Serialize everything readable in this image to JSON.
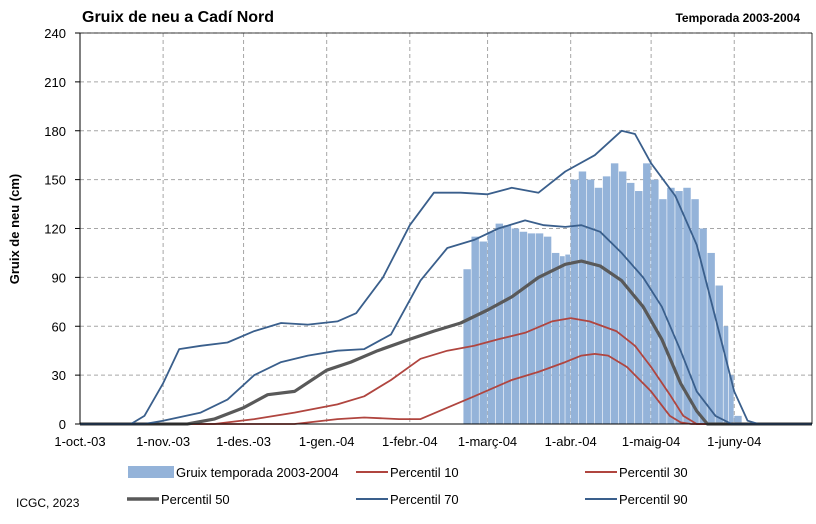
{
  "colors": {
    "bars": "#94b3d9",
    "p10": "#b0453f",
    "p30": "#b0453f",
    "p50": "#595959",
    "p70": "#3a5f8c",
    "p90": "#3a5f8c",
    "grid": "#a6a6a6"
  },
  "chart_data": {
    "type": "bar",
    "title": "Gruix de neu a Cadí Nord",
    "season_label": "Temporada 2003-2004",
    "ylabel": "Gruix de neu (cm)",
    "xlabel": "",
    "ylim": [
      0,
      240
    ],
    "yticks": [
      0,
      30,
      60,
      90,
      120,
      150,
      180,
      210,
      240
    ],
    "xlim": [
      "2003-10-01",
      "2004-06-30"
    ],
    "xticks": [
      {
        "date": "2003-10-01",
        "label": "1-oct.-03"
      },
      {
        "date": "2003-11-01",
        "label": "1-nov.-03"
      },
      {
        "date": "2003-12-01",
        "label": "1-des.-03"
      },
      {
        "date": "2004-01-01",
        "label": "1-gen.-04"
      },
      {
        "date": "2004-02-01",
        "label": "1-febr.-04"
      },
      {
        "date": "2004-03-01",
        "label": "1-març-04"
      },
      {
        "date": "2004-04-01",
        "label": "1-abr.-04"
      },
      {
        "date": "2004-05-01",
        "label": "1-maig-04"
      },
      {
        "date": "2004-06-01",
        "label": "1-juny-04"
      }
    ],
    "grid": "dashed",
    "legend_placement": "bottom",
    "bars": {
      "name": "Gruix temporada 2003-2004",
      "points": [
        [
          "2004-02-21",
          95
        ],
        [
          "2004-02-24",
          115
        ],
        [
          "2004-02-27",
          112
        ],
        [
          "2004-03-01",
          118
        ],
        [
          "2004-03-04",
          123
        ],
        [
          "2004-03-07",
          122
        ],
        [
          "2004-03-10",
          120
        ],
        [
          "2004-03-13",
          118
        ],
        [
          "2004-03-16",
          117
        ],
        [
          "2004-03-19",
          117
        ],
        [
          "2004-03-22",
          115
        ],
        [
          "2004-03-25",
          105
        ],
        [
          "2004-03-28",
          103
        ],
        [
          "2004-03-30",
          104
        ],
        [
          "2004-04-01",
          150
        ],
        [
          "2004-04-04",
          155
        ],
        [
          "2004-04-07",
          150
        ],
        [
          "2004-04-10",
          145
        ],
        [
          "2004-04-13",
          152
        ],
        [
          "2004-04-16",
          160
        ],
        [
          "2004-04-19",
          155
        ],
        [
          "2004-04-22",
          148
        ],
        [
          "2004-04-25",
          143
        ],
        [
          "2004-04-28",
          160
        ],
        [
          "2004-05-01",
          150
        ],
        [
          "2004-05-04",
          138
        ],
        [
          "2004-05-07",
          145
        ],
        [
          "2004-05-10",
          143
        ],
        [
          "2004-05-13",
          145
        ],
        [
          "2004-05-16",
          138
        ],
        [
          "2004-05-19",
          120
        ],
        [
          "2004-05-22",
          105
        ],
        [
          "2004-05-25",
          85
        ],
        [
          "2004-05-28",
          60
        ],
        [
          "2004-05-30",
          30
        ],
        [
          "2004-06-01",
          5
        ]
      ]
    },
    "series": [
      {
        "name": "Percentil 10",
        "points": [
          [
            "2003-10-01",
            0
          ],
          [
            "2003-12-20",
            0
          ],
          [
            "2004-01-05",
            3
          ],
          [
            "2004-01-15",
            4
          ],
          [
            "2004-01-28",
            3
          ],
          [
            "2004-02-05",
            3
          ],
          [
            "2004-02-15",
            10
          ],
          [
            "2004-02-25",
            17
          ],
          [
            "2004-03-10",
            27
          ],
          [
            "2004-03-20",
            32
          ],
          [
            "2004-03-30",
            38
          ],
          [
            "2004-04-05",
            42
          ],
          [
            "2004-04-10",
            43
          ],
          [
            "2004-04-15",
            42
          ],
          [
            "2004-04-22",
            35
          ],
          [
            "2004-05-01",
            20
          ],
          [
            "2004-05-08",
            5
          ],
          [
            "2004-05-12",
            1
          ],
          [
            "2004-05-16",
            0
          ],
          [
            "2004-06-30",
            0
          ]
        ]
      },
      {
        "name": "Percentil 30",
        "points": [
          [
            "2003-10-01",
            0
          ],
          [
            "2003-11-20",
            0
          ],
          [
            "2003-12-05",
            3
          ],
          [
            "2003-12-20",
            7
          ],
          [
            "2004-01-05",
            12
          ],
          [
            "2004-01-15",
            17
          ],
          [
            "2004-01-25",
            27
          ],
          [
            "2004-02-05",
            40
          ],
          [
            "2004-02-15",
            45
          ],
          [
            "2004-02-25",
            48
          ],
          [
            "2004-03-05",
            52
          ],
          [
            "2004-03-15",
            56
          ],
          [
            "2004-03-25",
            63
          ],
          [
            "2004-04-01",
            65
          ],
          [
            "2004-04-08",
            63
          ],
          [
            "2004-04-18",
            57
          ],
          [
            "2004-04-25",
            48
          ],
          [
            "2004-05-01",
            35
          ],
          [
            "2004-05-08",
            18
          ],
          [
            "2004-05-13",
            5
          ],
          [
            "2004-05-18",
            0
          ],
          [
            "2004-06-30",
            0
          ]
        ]
      },
      {
        "name": "Percentil 50",
        "points": [
          [
            "2003-10-01",
            0
          ],
          [
            "2003-11-10",
            0
          ],
          [
            "2003-11-20",
            3
          ],
          [
            "2003-12-01",
            10
          ],
          [
            "2003-12-10",
            18
          ],
          [
            "2003-12-20",
            20
          ],
          [
            "2004-01-01",
            33
          ],
          [
            "2004-01-10",
            38
          ],
          [
            "2004-01-20",
            45
          ],
          [
            "2004-02-01",
            52
          ],
          [
            "2004-02-10",
            57
          ],
          [
            "2004-02-20",
            62
          ],
          [
            "2004-03-01",
            70
          ],
          [
            "2004-03-10",
            78
          ],
          [
            "2004-03-20",
            90
          ],
          [
            "2004-03-30",
            98
          ],
          [
            "2004-04-05",
            100
          ],
          [
            "2004-04-12",
            97
          ],
          [
            "2004-04-20",
            88
          ],
          [
            "2004-04-28",
            72
          ],
          [
            "2004-05-05",
            52
          ],
          [
            "2004-05-12",
            25
          ],
          [
            "2004-05-18",
            8
          ],
          [
            "2004-05-22",
            0
          ],
          [
            "2004-06-30",
            0
          ]
        ]
      },
      {
        "name": "Percentil 70",
        "points": [
          [
            "2003-10-01",
            0
          ],
          [
            "2003-10-25",
            0
          ],
          [
            "2003-11-01",
            2
          ],
          [
            "2003-11-15",
            7
          ],
          [
            "2003-11-25",
            15
          ],
          [
            "2003-12-05",
            30
          ],
          [
            "2003-12-15",
            38
          ],
          [
            "2003-12-25",
            42
          ],
          [
            "2004-01-05",
            45
          ],
          [
            "2004-01-15",
            46
          ],
          [
            "2004-01-25",
            55
          ],
          [
            "2004-02-05",
            88
          ],
          [
            "2004-02-15",
            108
          ],
          [
            "2004-02-25",
            113
          ],
          [
            "2004-03-05",
            120
          ],
          [
            "2004-03-15",
            125
          ],
          [
            "2004-03-22",
            122
          ],
          [
            "2004-03-30",
            121
          ],
          [
            "2004-04-05",
            122
          ],
          [
            "2004-04-12",
            118
          ],
          [
            "2004-04-20",
            105
          ],
          [
            "2004-04-28",
            90
          ],
          [
            "2004-05-05",
            72
          ],
          [
            "2004-05-12",
            45
          ],
          [
            "2004-05-18",
            20
          ],
          [
            "2004-05-25",
            5
          ],
          [
            "2004-05-31",
            0
          ],
          [
            "2004-06-30",
            0
          ]
        ]
      },
      {
        "name": "Percentil 90",
        "points": [
          [
            "2003-10-01",
            0
          ],
          [
            "2003-10-20",
            0
          ],
          [
            "2003-10-25",
            5
          ],
          [
            "2003-11-01",
            25
          ],
          [
            "2003-11-07",
            46
          ],
          [
            "2003-11-15",
            48
          ],
          [
            "2003-11-25",
            50
          ],
          [
            "2003-12-05",
            57
          ],
          [
            "2003-12-15",
            62
          ],
          [
            "2003-12-25",
            61
          ],
          [
            "2004-01-05",
            63
          ],
          [
            "2004-01-12",
            68
          ],
          [
            "2004-01-22",
            90
          ],
          [
            "2004-02-01",
            122
          ],
          [
            "2004-02-10",
            142
          ],
          [
            "2004-02-20",
            142
          ],
          [
            "2004-03-01",
            141
          ],
          [
            "2004-03-10",
            145
          ],
          [
            "2004-03-20",
            142
          ],
          [
            "2004-03-30",
            155
          ],
          [
            "2004-04-10",
            165
          ],
          [
            "2004-04-20",
            180
          ],
          [
            "2004-04-25",
            178
          ],
          [
            "2004-05-01",
            160
          ],
          [
            "2004-05-10",
            140
          ],
          [
            "2004-05-18",
            110
          ],
          [
            "2004-05-25",
            65
          ],
          [
            "2004-06-01",
            20
          ],
          [
            "2004-06-06",
            2
          ],
          [
            "2004-06-10",
            0
          ],
          [
            "2004-06-30",
            0
          ]
        ]
      }
    ]
  },
  "footer": {
    "credit": "ICGC, 2023"
  }
}
